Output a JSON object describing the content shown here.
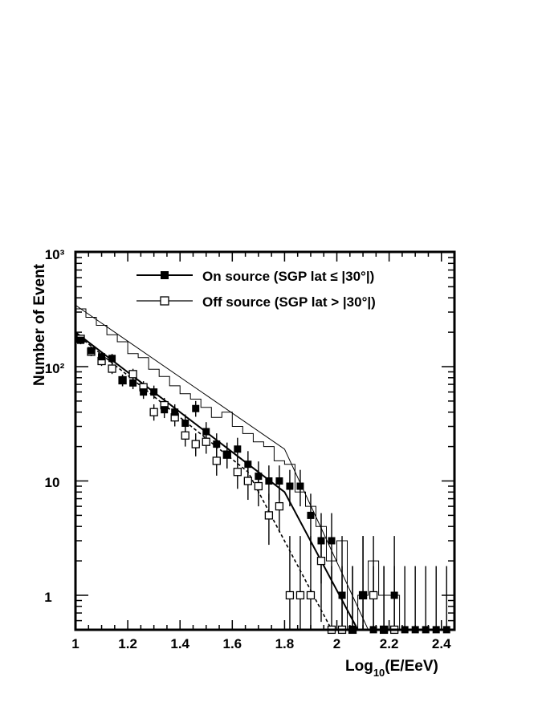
{
  "chart_data": {
    "type": "scatter",
    "xlabel": "Log10(E/EeV)",
    "xlabel_parts": {
      "main": "Log",
      "sub": "10",
      "rest": "(E/EeV)"
    },
    "ylabel": "Number of Event",
    "xlim": [
      1.0,
      2.45
    ],
    "ylim": [
      0.5,
      1000
    ],
    "yscale": "log",
    "x_ticks": [
      "1",
      "1.2",
      "1.4",
      "1.6",
      "1.8",
      "2",
      "2.2",
      "2.4"
    ],
    "y_ticks": [
      "1",
      "10",
      "10²",
      "10³"
    ],
    "legend_position": "top-right",
    "legend": [
      {
        "label": "On source (SGP lat ≤ |30°|)",
        "marker": "filled-square"
      },
      {
        "label": "Off source (SGP lat > |30°|)",
        "marker": "open-square"
      }
    ],
    "series": [
      {
        "name": "On source (SGP lat ≤ |30°|)",
        "marker": "filled-square",
        "x": [
          1.02,
          1.06,
          1.1,
          1.14,
          1.18,
          1.22,
          1.26,
          1.3,
          1.34,
          1.38,
          1.42,
          1.46,
          1.5,
          1.54,
          1.58,
          1.62,
          1.66,
          1.7,
          1.74,
          1.78,
          1.82,
          1.86,
          1.9,
          1.94,
          1.98,
          2.02,
          2.06,
          2.1,
          2.14,
          2.18,
          2.22,
          2.26,
          2.3,
          2.34,
          2.38,
          2.42
        ],
        "y": [
          170,
          138,
          122,
          118,
          76,
          72,
          60,
          60,
          42,
          40,
          32,
          43,
          27,
          21,
          17,
          19,
          14,
          11,
          10,
          10,
          9,
          9,
          5,
          3,
          3,
          1,
          0.5,
          1,
          0.5,
          0.5,
          1,
          0.5,
          0.5,
          0.5,
          0.5,
          0.5
        ]
      },
      {
        "name": "Off source (SGP lat > |30°|)",
        "marker": "open-square",
        "x": [
          1.02,
          1.06,
          1.1,
          1.14,
          1.18,
          1.22,
          1.26,
          1.3,
          1.34,
          1.38,
          1.42,
          1.46,
          1.5,
          1.54,
          1.58,
          1.62,
          1.66,
          1.7,
          1.74,
          1.78,
          1.82,
          1.86,
          1.9,
          1.94,
          1.98,
          2.02,
          2.06,
          2.1,
          2.14,
          2.18,
          2.22
        ],
        "y": [
          175,
          135,
          112,
          96,
          76,
          86,
          66,
          40,
          46,
          36,
          25,
          21,
          22,
          15,
          17,
          12,
          10,
          9,
          5,
          6,
          1,
          1,
          1,
          2,
          0.5,
          0.5,
          0.5,
          1,
          1,
          0.5,
          0.5
        ]
      },
      {
        "name": "",
        "style": "thin-histogram",
        "x": [
          1.0,
          1.04,
          1.08,
          1.12,
          1.16,
          1.2,
          1.24,
          1.28,
          1.32,
          1.36,
          1.4,
          1.44,
          1.48,
          1.52,
          1.56,
          1.6,
          1.64,
          1.68,
          1.72,
          1.76,
          1.8,
          1.84,
          1.88,
          1.92,
          1.96,
          2.0,
          2.04,
          2.08,
          2.12,
          2.16,
          2.2,
          2.24
        ],
        "y": [
          320,
          270,
          230,
          190,
          165,
          130,
          120,
          95,
          82,
          68,
          58,
          52,
          44,
          36,
          40,
          30,
          26,
          22,
          20,
          15,
          14,
          8,
          6,
          4,
          2,
          3,
          0.5,
          1,
          2,
          1,
          1,
          0.5
        ]
      },
      {
        "name": "",
        "style": "thin-fit-line",
        "x": [
          1.0,
          1.8,
          2.12
        ],
        "y": [
          345,
          19,
          0.5
        ]
      },
      {
        "name": "",
        "style": "thick-fit-line",
        "x": [
          1.0,
          1.8,
          2.08
        ],
        "y": [
          200,
          8,
          0.5
        ]
      },
      {
        "name": "",
        "style": "dashed-fit-line",
        "x": [
          1.0,
          1.66,
          1.98
        ],
        "y": [
          195,
          12,
          0.5
        ]
      }
    ]
  }
}
